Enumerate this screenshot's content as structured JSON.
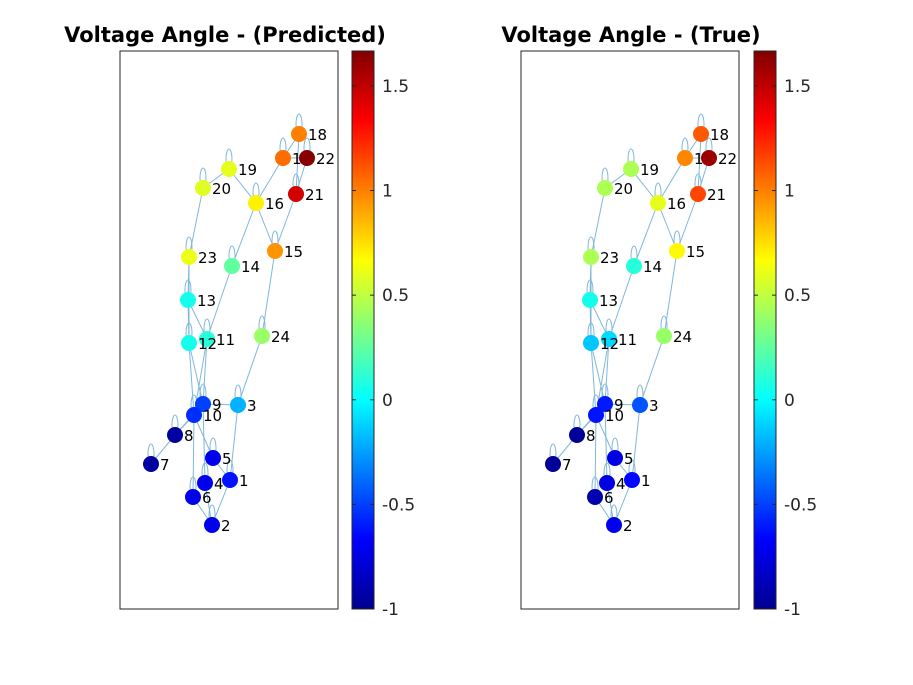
{
  "chart_data": [
    {
      "type": "graph",
      "title": "Voltage Angle - (Predicted)",
      "colormap": "jet",
      "clim": [
        -1,
        1.667
      ],
      "colorbar_ticks": [
        -1,
        -0.5,
        0,
        0.5,
        1,
        1.5
      ],
      "colorbar_tick_labels": [
        "-1",
        "-0.5",
        "0",
        "0.5",
        "1",
        "1.5"
      ],
      "nodes": [
        {
          "id": "1",
          "value": -0.62
        },
        {
          "id": "2",
          "value": -0.72
        },
        {
          "id": "3",
          "value": -0.2
        },
        {
          "id": "4",
          "value": -0.72
        },
        {
          "id": "5",
          "value": -0.72
        },
        {
          "id": "6",
          "value": -0.72
        },
        {
          "id": "7",
          "value": -0.95
        },
        {
          "id": "8",
          "value": -0.95
        },
        {
          "id": "9",
          "value": -0.5
        },
        {
          "id": "10",
          "value": -0.55
        },
        {
          "id": "11",
          "value": 0.1
        },
        {
          "id": "12",
          "value": 0.05
        },
        {
          "id": "13",
          "value": 0.05
        },
        {
          "id": "14",
          "value": 0.25
        },
        {
          "id": "15",
          "value": 0.95
        },
        {
          "id": "16",
          "value": 0.7
        },
        {
          "id": "17",
          "value": 1.05
        },
        {
          "id": "18",
          "value": 1.0
        },
        {
          "id": "19",
          "value": 0.6
        },
        {
          "id": "20",
          "value": 0.58
        },
        {
          "id": "21",
          "value": 1.45
        },
        {
          "id": "22",
          "value": 1.65
        },
        {
          "id": "23",
          "value": 0.62
        },
        {
          "id": "24",
          "value": 0.4
        }
      ]
    },
    {
      "type": "graph",
      "title": "Voltage Angle - (True)",
      "colormap": "jet",
      "clim": [
        -1,
        1.667
      ],
      "colorbar_ticks": [
        -1,
        -0.5,
        0,
        0.5,
        1,
        1.5
      ],
      "colorbar_tick_labels": [
        "-1",
        "-0.5",
        "0",
        "0.5",
        "1",
        "1.5"
      ],
      "nodes": [
        {
          "id": "1",
          "value": -0.65
        },
        {
          "id": "2",
          "value": -0.72
        },
        {
          "id": "3",
          "value": -0.45
        },
        {
          "id": "4",
          "value": -0.75
        },
        {
          "id": "5",
          "value": -0.75
        },
        {
          "id": "6",
          "value": -0.9
        },
        {
          "id": "7",
          "value": -0.97
        },
        {
          "id": "8",
          "value": -0.97
        },
        {
          "id": "9",
          "value": -0.6
        },
        {
          "id": "10",
          "value": -0.62
        },
        {
          "id": "11",
          "value": -0.1
        },
        {
          "id": "12",
          "value": -0.15
        },
        {
          "id": "13",
          "value": 0.05
        },
        {
          "id": "14",
          "value": 0.1
        },
        {
          "id": "15",
          "value": 0.68
        },
        {
          "id": "16",
          "value": 0.6
        },
        {
          "id": "17",
          "value": 0.98
        },
        {
          "id": "18",
          "value": 1.1
        },
        {
          "id": "19",
          "value": 0.45
        },
        {
          "id": "20",
          "value": 0.45
        },
        {
          "id": "21",
          "value": 1.15
        },
        {
          "id": "22",
          "value": 1.6
        },
        {
          "id": "23",
          "value": 0.45
        },
        {
          "id": "24",
          "value": 0.4
        }
      ]
    }
  ],
  "edges": [
    [
      "1",
      "2"
    ],
    [
      "1",
      "3"
    ],
    [
      "1",
      "5"
    ],
    [
      "2",
      "4"
    ],
    [
      "2",
      "6"
    ],
    [
      "3",
      "9"
    ],
    [
      "3",
      "24"
    ],
    [
      "4",
      "9"
    ],
    [
      "5",
      "10"
    ],
    [
      "6",
      "10"
    ],
    [
      "7",
      "8"
    ],
    [
      "8",
      "9"
    ],
    [
      "8",
      "10"
    ],
    [
      "9",
      "11"
    ],
    [
      "9",
      "12"
    ],
    [
      "10",
      "11"
    ],
    [
      "10",
      "12"
    ],
    [
      "11",
      "13"
    ],
    [
      "11",
      "14"
    ],
    [
      "12",
      "13"
    ],
    [
      "12",
      "23"
    ],
    [
      "13",
      "23"
    ],
    [
      "14",
      "16"
    ],
    [
      "15",
      "16"
    ],
    [
      "15",
      "21"
    ],
    [
      "15",
      "24"
    ],
    [
      "16",
      "17"
    ],
    [
      "16",
      "19"
    ],
    [
      "17",
      "18"
    ],
    [
      "17",
      "22"
    ],
    [
      "18",
      "21"
    ],
    [
      "19",
      "20"
    ],
    [
      "20",
      "23"
    ],
    [
      "21",
      "22"
    ]
  ]
}
